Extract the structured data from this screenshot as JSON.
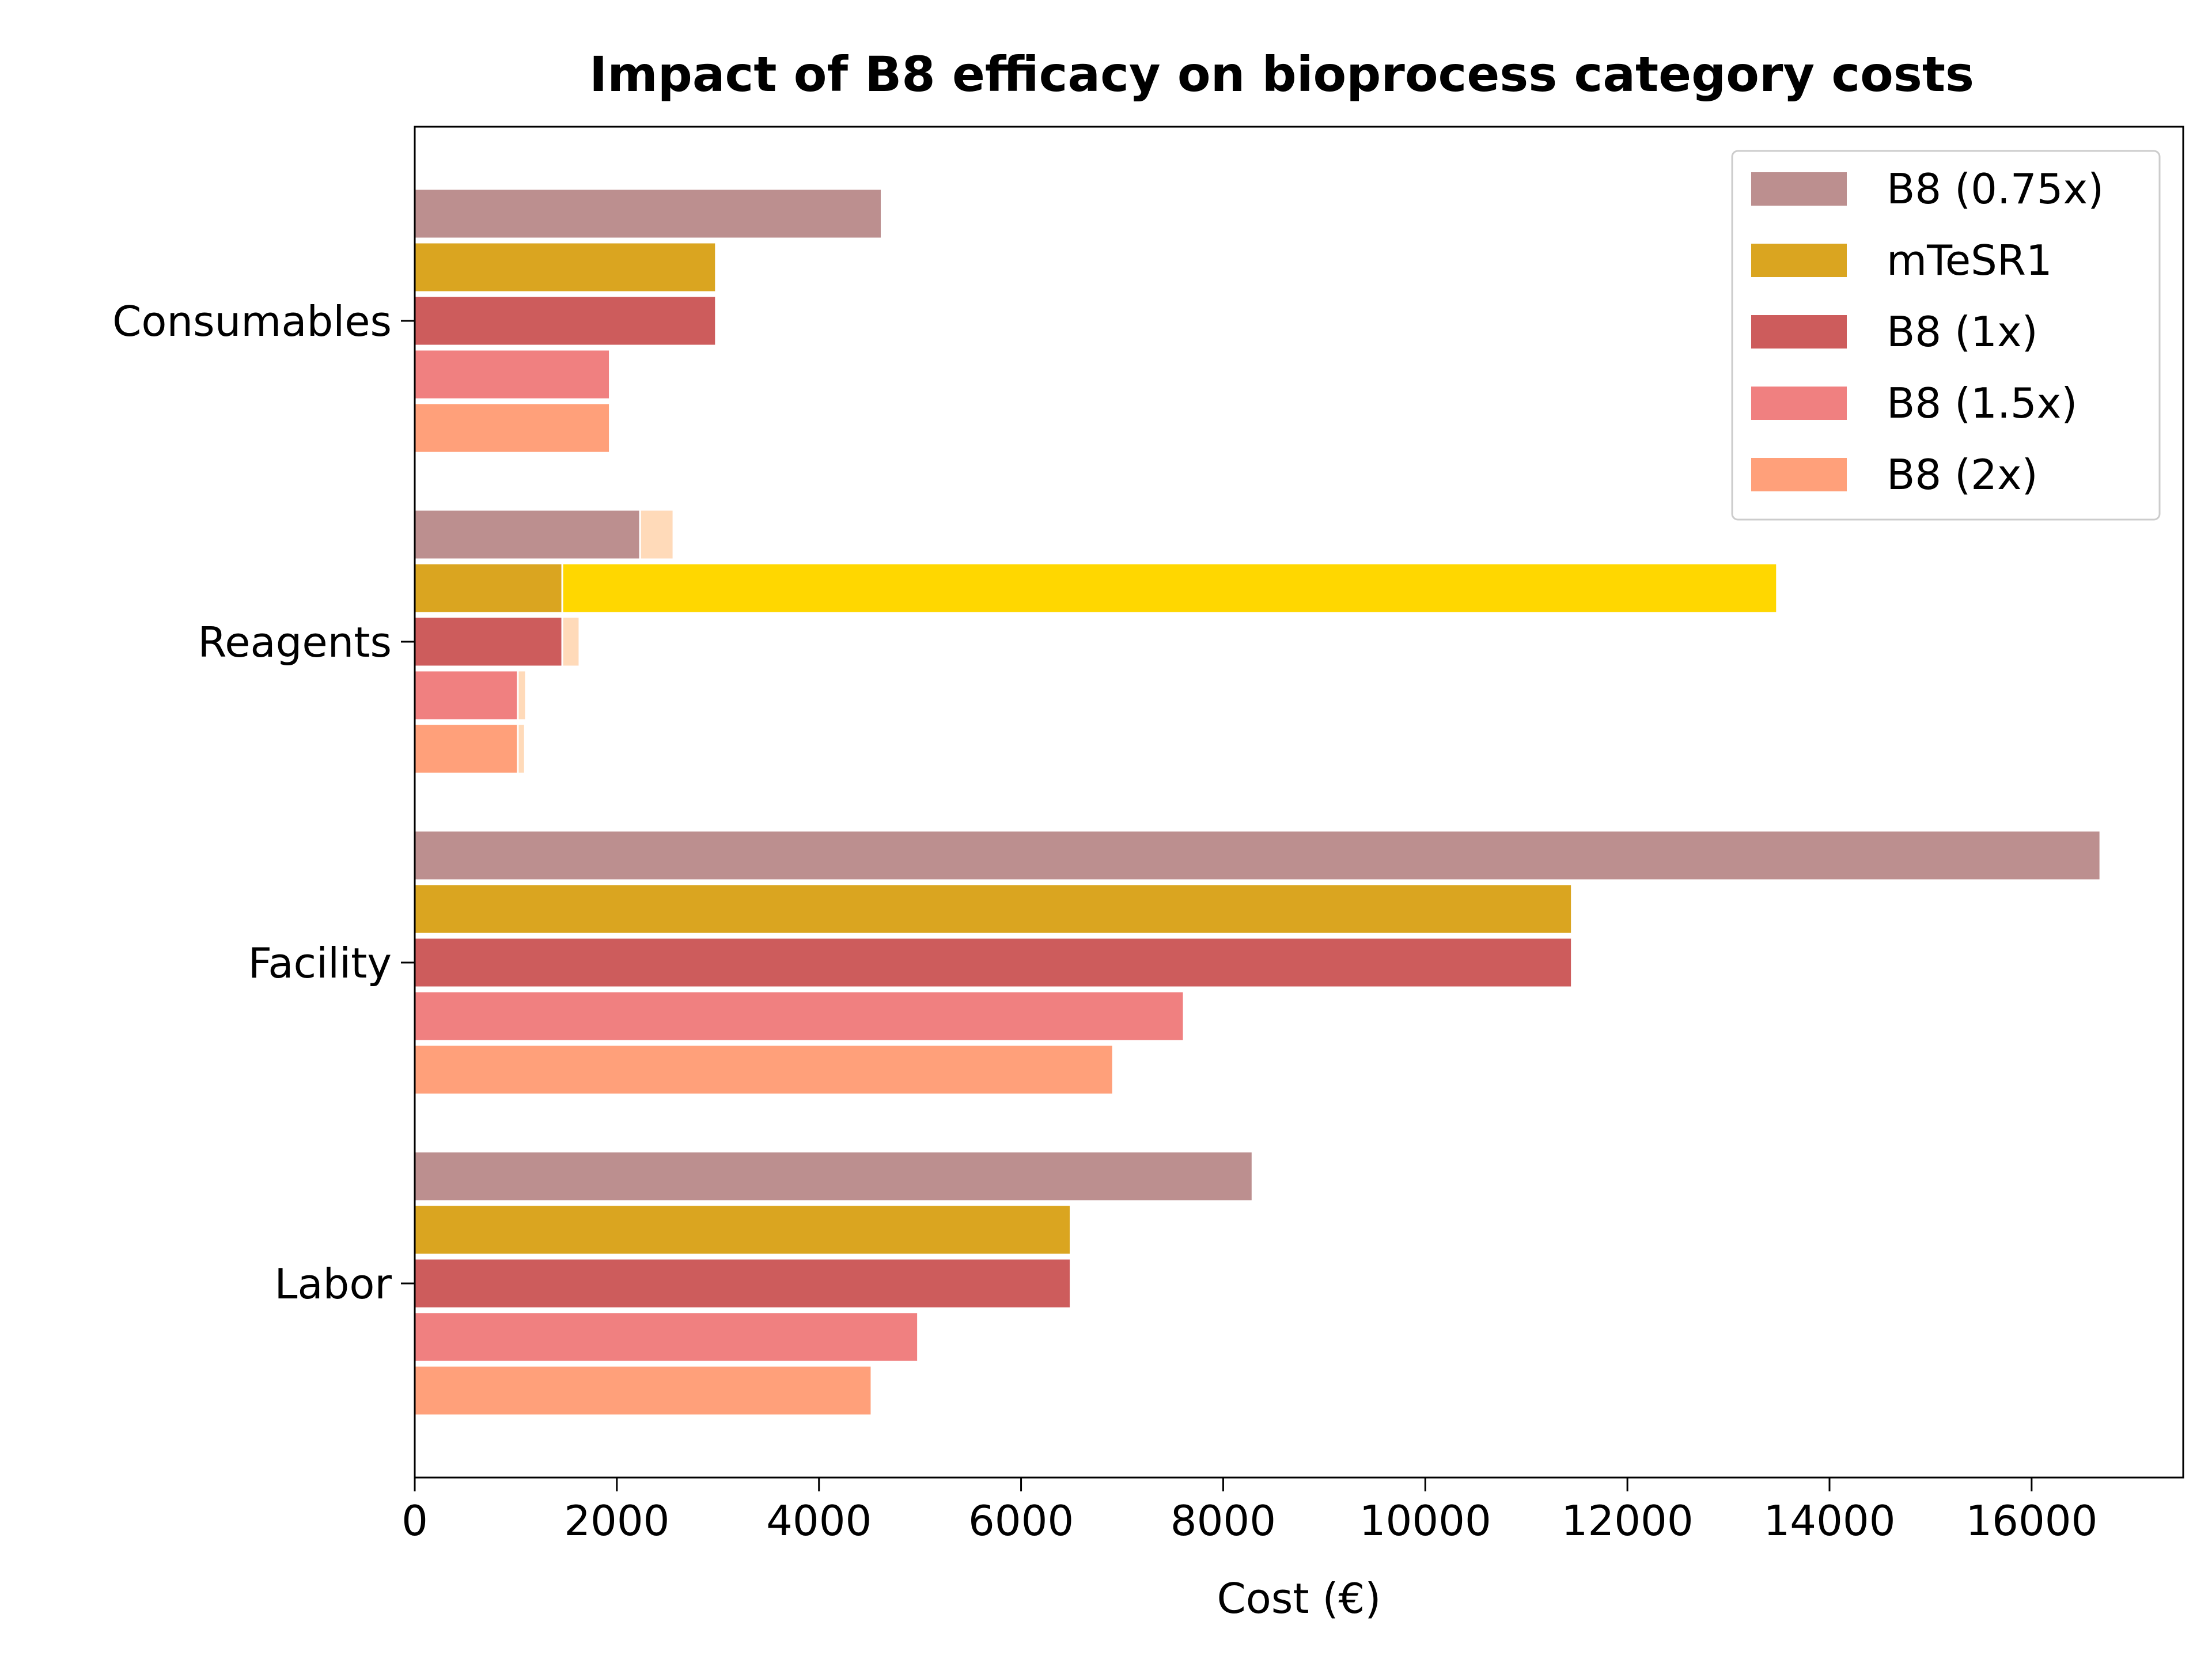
{
  "chart_data": {
    "type": "bar",
    "orientation": "horizontal",
    "title": "Impact of B8 efficacy on bioprocess category costs",
    "xlabel": "Cost (€)",
    "ylabel": "",
    "xlim": [
      0,
      17500
    ],
    "xticks": [
      0,
      2000,
      4000,
      6000,
      8000,
      10000,
      12000,
      14000,
      16000
    ],
    "categories": [
      "Consumables",
      "Reagents",
      "Facility",
      "Labor"
    ],
    "series": [
      {
        "name": "B8 (0.75x)",
        "color": "#bc8f8f",
        "values": [
          4620,
          2230,
          16680,
          8290
        ]
      },
      {
        "name": "mTeSR1",
        "color": "#daa520",
        "values": [
          2980,
          1460,
          11450,
          6490
        ]
      },
      {
        "name": "B8 (1x)",
        "color": "#cd5c5c",
        "values": [
          2980,
          1460,
          11450,
          6490
        ]
      },
      {
        "name": "B8 (1.5x)",
        "color": "#f08080",
        "values": [
          1930,
          1020,
          7610,
          4980
        ]
      },
      {
        "name": "B8 (2x)",
        "color": "#ffa07a",
        "values": [
          1930,
          1020,
          6910,
          4520
        ]
      }
    ],
    "overlay_segments": [
      {
        "category": "Reagents",
        "series": "B8 (0.75x)",
        "start": 2230,
        "end": 2560,
        "color": "#ffdab9"
      },
      {
        "category": "Reagents",
        "series": "mTeSR1",
        "start": 1460,
        "end": 13480,
        "color": "#ffd700"
      },
      {
        "category": "Reagents",
        "series": "B8 (1x)",
        "start": 1460,
        "end": 1630,
        "color": "#ffdab9"
      },
      {
        "category": "Reagents",
        "series": "B8 (1.5x)",
        "start": 1020,
        "end": 1100,
        "color": "#ffdab9"
      },
      {
        "category": "Reagents",
        "series": "B8 (2x)",
        "start": 1020,
        "end": 1090,
        "color": "#ffdab9"
      }
    ],
    "legend": {
      "position": "top-right"
    },
    "grid": false
  }
}
